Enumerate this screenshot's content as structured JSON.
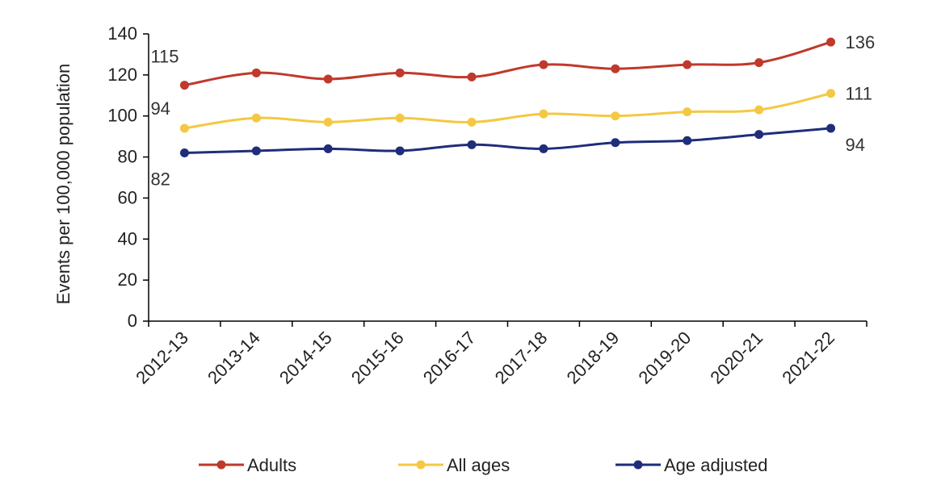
{
  "chart_data": {
    "type": "line",
    "title": "",
    "xlabel": "",
    "ylabel": "Events per 100,000 population",
    "ylim": [
      0,
      140
    ],
    "yticks": [
      0,
      20,
      40,
      60,
      80,
      100,
      120,
      140
    ],
    "grid": false,
    "legend_position": "bottom",
    "categories": [
      "2012-13",
      "2013-14",
      "2014-15",
      "2015-16",
      "2016-17",
      "2017-18",
      "2018-19",
      "2019-20",
      "2020-21",
      "2021-22"
    ],
    "series": [
      {
        "name": "Adults",
        "color": "#c0392b",
        "values": [
          115,
          121,
          118,
          121,
          119,
          125,
          123,
          125,
          126,
          136
        ],
        "labels": {
          "start": "115",
          "end": "136"
        }
      },
      {
        "name": "All ages",
        "color": "#f4c842",
        "values": [
          94,
          99,
          97,
          99,
          97,
          101,
          100,
          102,
          103,
          111
        ],
        "labels": {
          "start": "94",
          "end": "111"
        }
      },
      {
        "name": "Age adjusted",
        "color": "#1f2d7a",
        "values": [
          82,
          83,
          84,
          83,
          86,
          84,
          87,
          88,
          91,
          94
        ],
        "labels": {
          "start": "82",
          "end": "94"
        }
      }
    ]
  }
}
